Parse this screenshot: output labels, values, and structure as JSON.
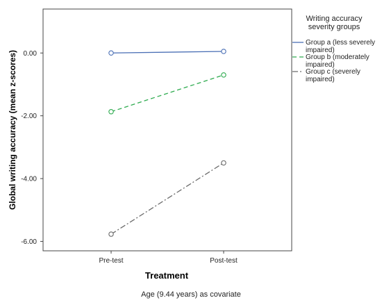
{
  "chart_data": {
    "type": "line",
    "ylabel": "Global writing accuracy (mean z-scores)",
    "xlabel": "Treatment",
    "note": "Age (9.44 years) as covariate",
    "categories": [
      "Pre-test",
      "Post-test"
    ],
    "y_ticks": [
      "0.00",
      "-2.00",
      "-4.00",
      "-6.00"
    ],
    "ylim": [
      -6.3,
      1.4
    ],
    "grid": false,
    "legend": {
      "title_lines": [
        "Writing accuracy",
        "severity groups"
      ],
      "placement": "right"
    },
    "series": [
      {
        "name_lines": [
          "Group a (less severely",
          "impaired)"
        ],
        "values": [
          0.0,
          0.05
        ],
        "color": "#4a6fb5",
        "style": "solid"
      },
      {
        "name_lines": [
          "Group b (moderately",
          "impaired)"
        ],
        "values": [
          -1.87,
          -0.7
        ],
        "color": "#2eab4f",
        "style": "dashed"
      },
      {
        "name_lines": [
          "Group c (severely",
          "impaired)"
        ],
        "values": [
          -5.77,
          -3.5
        ],
        "color": "#6b6b6b",
        "style": "dashdot"
      }
    ]
  }
}
